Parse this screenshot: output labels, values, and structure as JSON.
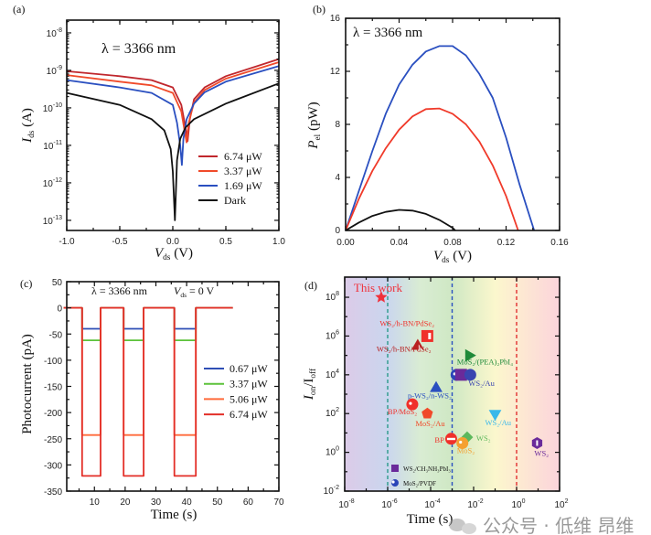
{
  "watermark": "公众号 · 低维 昂维",
  "chart_data": [
    {
      "panel": "(a)",
      "type": "line",
      "annotation": "λ = 3366 nm",
      "xlabel": {
        "main": "V",
        "sub": "ds",
        "unit": " (V)"
      },
      "ylabel": {
        "main": "I",
        "sub": "ds",
        "unit": " (A)"
      },
      "xlim": [
        -1.0,
        1.0
      ],
      "xticks": [
        -1.0,
        -0.5,
        0.0,
        0.5,
        1.0
      ],
      "xtick_labels": [
        "-1.0",
        "-0.5",
        "0.0",
        "0.5",
        "1.0"
      ],
      "yscale": "log",
      "ylim_exp": [
        -13.27,
        -7.66
      ],
      "yticks_exp": [
        -13,
        -12,
        -11,
        -10,
        -9,
        -8
      ],
      "legend_placement": "lower-right",
      "series": [
        {
          "name": "6.74 μW",
          "color": "#c0272d",
          "x": [
            -1,
            -0.5,
            -0.2,
            0,
            0.08,
            0.12,
            0.14,
            0.16,
            0.2,
            0.3,
            0.5,
            1
          ],
          "y": [
            9.5e-10,
            7e-10,
            5.5e-10,
            3.5e-10,
            1.2e-10,
            3e-11,
            1.3e-11,
            5e-11,
            1.7e-10,
            3.5e-10,
            7e-10,
            2e-09
          ]
        },
        {
          "name": "3.37 μW",
          "color": "#f04a2a",
          "x": [
            -1,
            -0.5,
            -0.2,
            0,
            0.08,
            0.11,
            0.13,
            0.15,
            0.2,
            0.3,
            0.5,
            1
          ],
          "y": [
            7.5e-10,
            5e-10,
            4e-10,
            2.5e-10,
            8e-11,
            2.5e-11,
            1.2e-11,
            4e-11,
            1.4e-10,
            3e-10,
            6e-10,
            1.65e-09
          ]
        },
        {
          "name": "1.69 μW",
          "color": "#2a4fc0",
          "x": [
            -1,
            -0.5,
            -0.2,
            0,
            0.04,
            0.07,
            0.085,
            0.1,
            0.13,
            0.2,
            0.3,
            0.5,
            1
          ],
          "y": [
            5.5e-10,
            3.5e-10,
            2.5e-10,
            1.2e-10,
            4e-11,
            1e-11,
            3e-12,
            1.5e-11,
            5e-11,
            1.3e-10,
            2.6e-10,
            5e-10,
            1.3e-09
          ]
        },
        {
          "name": "Dark",
          "color": "#111111",
          "x": [
            -1,
            -0.5,
            -0.2,
            -0.08,
            -0.02,
            0.0,
            0.02,
            0.04,
            0.07,
            0.12,
            0.2,
            0.5,
            1
          ],
          "y": [
            2.5e-10,
            1.2e-10,
            5e-11,
            2.5e-11,
            8e-12,
            2e-12,
            1e-13,
            4e-12,
            1.5e-11,
            3e-11,
            5e-11,
            1.3e-10,
            4.5e-10
          ]
        }
      ]
    },
    {
      "panel": "(b)",
      "type": "line",
      "annotation": "λ = 3366 nm",
      "xlabel": {
        "main": "V",
        "sub": "ds",
        "unit": " (V)"
      },
      "ylabel": {
        "main": "P",
        "sub": "el",
        "unit": " (pW)"
      },
      "xlim": [
        0,
        0.16
      ],
      "xticks": [
        0,
        0.04,
        0.08,
        0.12,
        0.16
      ],
      "xtick_labels": [
        "0.00",
        "0.04",
        "0.08",
        "0.12",
        "0.16"
      ],
      "ylim": [
        0,
        16
      ],
      "yticks": [
        0,
        4,
        8,
        12,
        16
      ],
      "series": [
        {
          "color": "#2a4fc0",
          "x": [
            0,
            0.01,
            0.02,
            0.03,
            0.04,
            0.05,
            0.06,
            0.07,
            0.08,
            0.09,
            0.1,
            0.11,
            0.12,
            0.13,
            0.141
          ],
          "y": [
            0,
            3,
            6,
            8.8,
            11,
            12.5,
            13.5,
            13.9,
            13.9,
            13.2,
            11.8,
            10,
            7,
            3.5,
            0
          ]
        },
        {
          "color": "#f03a2a",
          "x": [
            0,
            0.01,
            0.02,
            0.03,
            0.04,
            0.05,
            0.06,
            0.07,
            0.08,
            0.09,
            0.1,
            0.11,
            0.12,
            0.129
          ],
          "y": [
            0,
            2.4,
            4.5,
            6.2,
            7.6,
            8.6,
            9.15,
            9.2,
            8.8,
            8,
            6.7,
            4.9,
            2.6,
            0
          ]
        },
        {
          "color": "#111111",
          "x": [
            0,
            0.01,
            0.02,
            0.03,
            0.04,
            0.05,
            0.06,
            0.07,
            0.08,
            0.082
          ],
          "y": [
            0,
            0.6,
            1.1,
            1.4,
            1.55,
            1.5,
            1.25,
            0.8,
            0.2,
            0
          ]
        }
      ]
    },
    {
      "panel": "(c)",
      "type": "line",
      "annotation": "λ = 3366 nm",
      "annotation2": {
        "main": "V",
        "sub": "ds",
        "unit": " = 0 V"
      },
      "xlabel": "Time (s)",
      "ylabel": "Photocurrent (pA)",
      "xlim": [
        1,
        70
      ],
      "xticks": [
        10,
        20,
        30,
        40,
        50,
        60,
        70
      ],
      "ylim": [
        -350,
        50
      ],
      "yticks": [
        -350,
        -300,
        -250,
        -200,
        -150,
        -100,
        -50,
        0,
        50
      ],
      "time_span_s": [
        0,
        55
      ],
      "on_periods_s": [
        [
          6,
          12
        ],
        [
          19.5,
          26
        ],
        [
          36,
          43
        ]
      ],
      "legend_placement": "right",
      "series": [
        {
          "name": "0.67 μW",
          "color": "#2f4fb5",
          "on_level": -40
        },
        {
          "name": "3.37 μW",
          "color": "#5cc23a",
          "on_level": -62
        },
        {
          "name": "5.06 μW",
          "color": "#ff6a3a",
          "on_level": -243
        },
        {
          "name": "6.74 μW",
          "color": "#e32f28",
          "on_level": -321
        }
      ]
    },
    {
      "panel": "(d)",
      "type": "scatter",
      "xlabel": "Time (s)",
      "ylabel": {
        "main": "I",
        "sub": "on",
        "mid": "/I",
        "sub2": "off"
      },
      "xscale": "log",
      "yscale": "log",
      "xlim_exp": [
        -8,
        2
      ],
      "xticks_exp": [
        -8,
        -6,
        -4,
        -2,
        0,
        2
      ],
      "ylim_exp": [
        -2,
        9.04
      ],
      "yticks_exp": [
        -2,
        0,
        2,
        4,
        6,
        8
      ],
      "dashed_lines_x": [
        {
          "x": 1e-06,
          "color": "#2a9a8a"
        },
        {
          "x": 0.001,
          "color": "#2a4fc0"
        },
        {
          "x": 1,
          "color": "#e03030"
        }
      ],
      "background_bands": [
        "#d8c6e6",
        "#cfdcef",
        "#d8eccb",
        "#fbf6cc",
        "#fbd8dc"
      ],
      "points": [
        {
          "label": "This work",
          "x": 5e-07,
          "y": 100000000.0,
          "marker": "star",
          "color": "#f0303a"
        },
        {
          "label": "WS₂/h-BN/PdSe₂",
          "x": 7e-05,
          "y": 1000000.0,
          "marker": "square-half",
          "color": "#f0302a"
        },
        {
          "label": "WS₂/h-BN/PdSe₂",
          "x": 2.5e-05,
          "y": 300000.0,
          "marker": "triangle-half",
          "color": "#b82020"
        },
        {
          "label": "MoS₂/(PEA)₂PbI₄",
          "x": 0.006,
          "y": 100000.0,
          "marker": "triangle-right",
          "color": "#1f8a3a"
        },
        {
          "label": "",
          "x": 0.0016,
          "y": 10000.0,
          "marker": "circle-dot",
          "color": "#2a45b8"
        },
        {
          "label": "",
          "x": 0.0026,
          "y": 10000.0,
          "marker": "square",
          "color": "#6a2a9a"
        },
        {
          "label": "WS₂/Au",
          "x": 0.007,
          "y": 10000.0,
          "marker": "circle",
          "color": "#3a45b0"
        },
        {
          "label": "p-WS₂/n-WS₂",
          "x": 0.00018,
          "y": 2000.0,
          "marker": "triangle",
          "color": "#2a4fc0"
        },
        {
          "label": "BP/MoS₂",
          "x": 1.4e-05,
          "y": 300.0,
          "marker": "circle-dot",
          "color": "#f0302a"
        },
        {
          "label": "MoS₂/Au",
          "x": 7e-05,
          "y": 100.0,
          "marker": "pentagon",
          "color": "#f04a2a"
        },
        {
          "label": "WS₂/Au",
          "x": 0.1,
          "y": 100.0,
          "marker": "triangle-down",
          "color": "#3ab8ea"
        },
        {
          "label": "BP",
          "x": 0.0009,
          "y": 5,
          "marker": "circle-bar",
          "color": "#f0302a"
        },
        {
          "label": "WS₂",
          "x": 0.005,
          "y": 6,
          "marker": "diamond",
          "color": "#5cb85c"
        },
        {
          "label": "MoS₂",
          "x": 0.003,
          "y": 3,
          "marker": "circle-dot",
          "color": "#f5a030"
        },
        {
          "label": "WS₂",
          "x": 9,
          "y": 3,
          "marker": "hexagon",
          "color": "#6a2a9a"
        }
      ],
      "legend": [
        {
          "label": "WS₂/CH₃NH₃PbI₃",
          "marker": "square",
          "color": "#6a2a9a"
        },
        {
          "label": "MoS₂/PVDF",
          "marker": "circle-dot",
          "color": "#2a45b8"
        }
      ]
    }
  ]
}
